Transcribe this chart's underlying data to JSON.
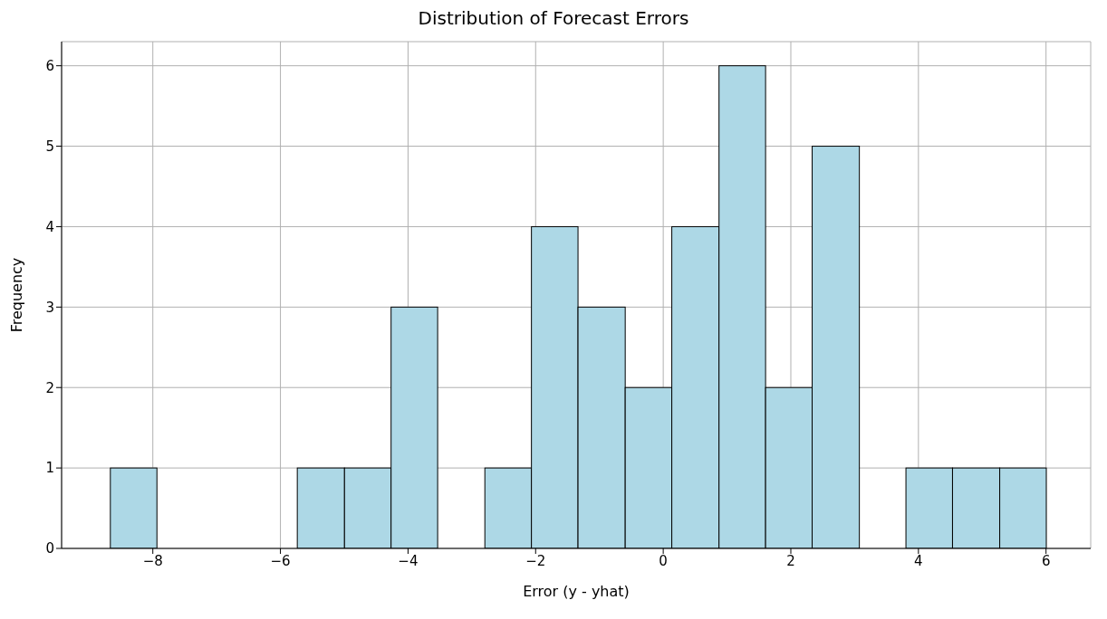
{
  "chart_data": {
    "type": "histogram",
    "title": "Distribution of Forecast Errors",
    "xlabel": "Error (y - yhat)",
    "ylabel": "Frequency",
    "bins": [
      -8.67,
      -7.94,
      -5.74,
      -5.0,
      -4.27,
      -3.54,
      -2.8,
      -2.07,
      -1.34,
      -0.6,
      0.13,
      0.87,
      1.6,
      2.33,
      3.07,
      3.8,
      4.53,
      5.27,
      6.0
    ],
    "values": [
      1,
      0,
      1,
      1,
      3,
      0,
      1,
      4,
      3,
      2,
      4,
      6,
      2,
      5,
      0,
      1,
      1,
      1
    ],
    "color": "#add8e6",
    "xlim": [
      -9.43,
      6.7
    ],
    "xticks": [
      {
        "value": -8,
        "label": "−8"
      },
      {
        "value": -6,
        "label": "−6"
      },
      {
        "value": -4,
        "label": "−4"
      },
      {
        "value": -2,
        "label": "−2"
      },
      0,
      2,
      4,
      6
    ],
    "ylim": [
      0,
      6.3
    ],
    "yticks": [
      0,
      1,
      2,
      3,
      4,
      5,
      6
    ],
    "grid": true
  }
}
